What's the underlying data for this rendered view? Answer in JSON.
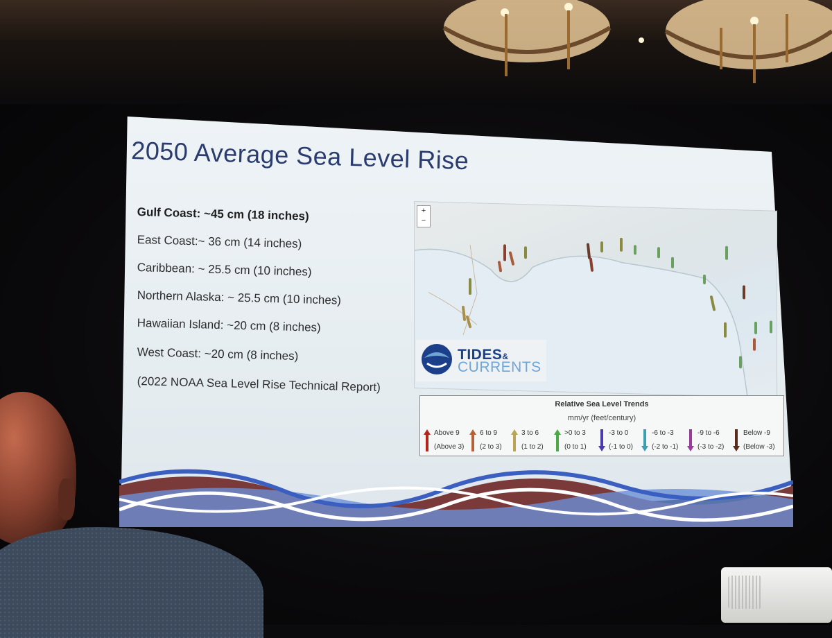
{
  "slide": {
    "title": "2050 Average Sea Level Rise",
    "bullets": [
      "Gulf Coast: ~45 cm (18 inches)",
      "East Coast:~ 36 cm (14 inches)",
      "Caribbean: ~ 25.5 cm (10 inches)",
      "Northern Alaska: ~ 25.5 cm (10 inches)",
      "Hawaiian Island: ~20 cm (8 inches)",
      "West Coast: ~20 cm (8 inches)",
      "(2022 NOAA Sea Level Rise Technical Report)"
    ]
  },
  "map": {
    "zoom_in": "+",
    "zoom_out": "−",
    "logo_tides": "TIDES",
    "logo_amp": "&",
    "logo_currents": "CURRENTS"
  },
  "legend": {
    "title": "Relative Sea Level Trends",
    "units": "mm/yr (feet/century)",
    "items": [
      {
        "a": "Above 9",
        "b": "(Above 3)",
        "color": "#b3261e",
        "dir": "up"
      },
      {
        "a": "6 to 9",
        "b": "(2 to 3)",
        "color": "#b5623a",
        "dir": "up"
      },
      {
        "a": "3 to 6",
        "b": "(1 to 2)",
        "color": "#b9a45a",
        "dir": "up"
      },
      {
        "a": ">0 to 3",
        "b": "(0 to 1)",
        "color": "#4aa845",
        "dir": "up"
      },
      {
        "a": "-3 to 0",
        "b": "(-1 to 0)",
        "color": "#4a3ab0",
        "dir": "down"
      },
      {
        "a": "-6 to -3",
        "b": "(-2 to -1)",
        "color": "#3aa0b0",
        "dir": "down"
      },
      {
        "a": "-9 to -6",
        "b": "(-3 to -2)",
        "color": "#9a3a9a",
        "dir": "down"
      },
      {
        "a": "Below -9",
        "b": "(Below -3)",
        "color": "#5a2a1a",
        "dir": "down"
      }
    ]
  }
}
